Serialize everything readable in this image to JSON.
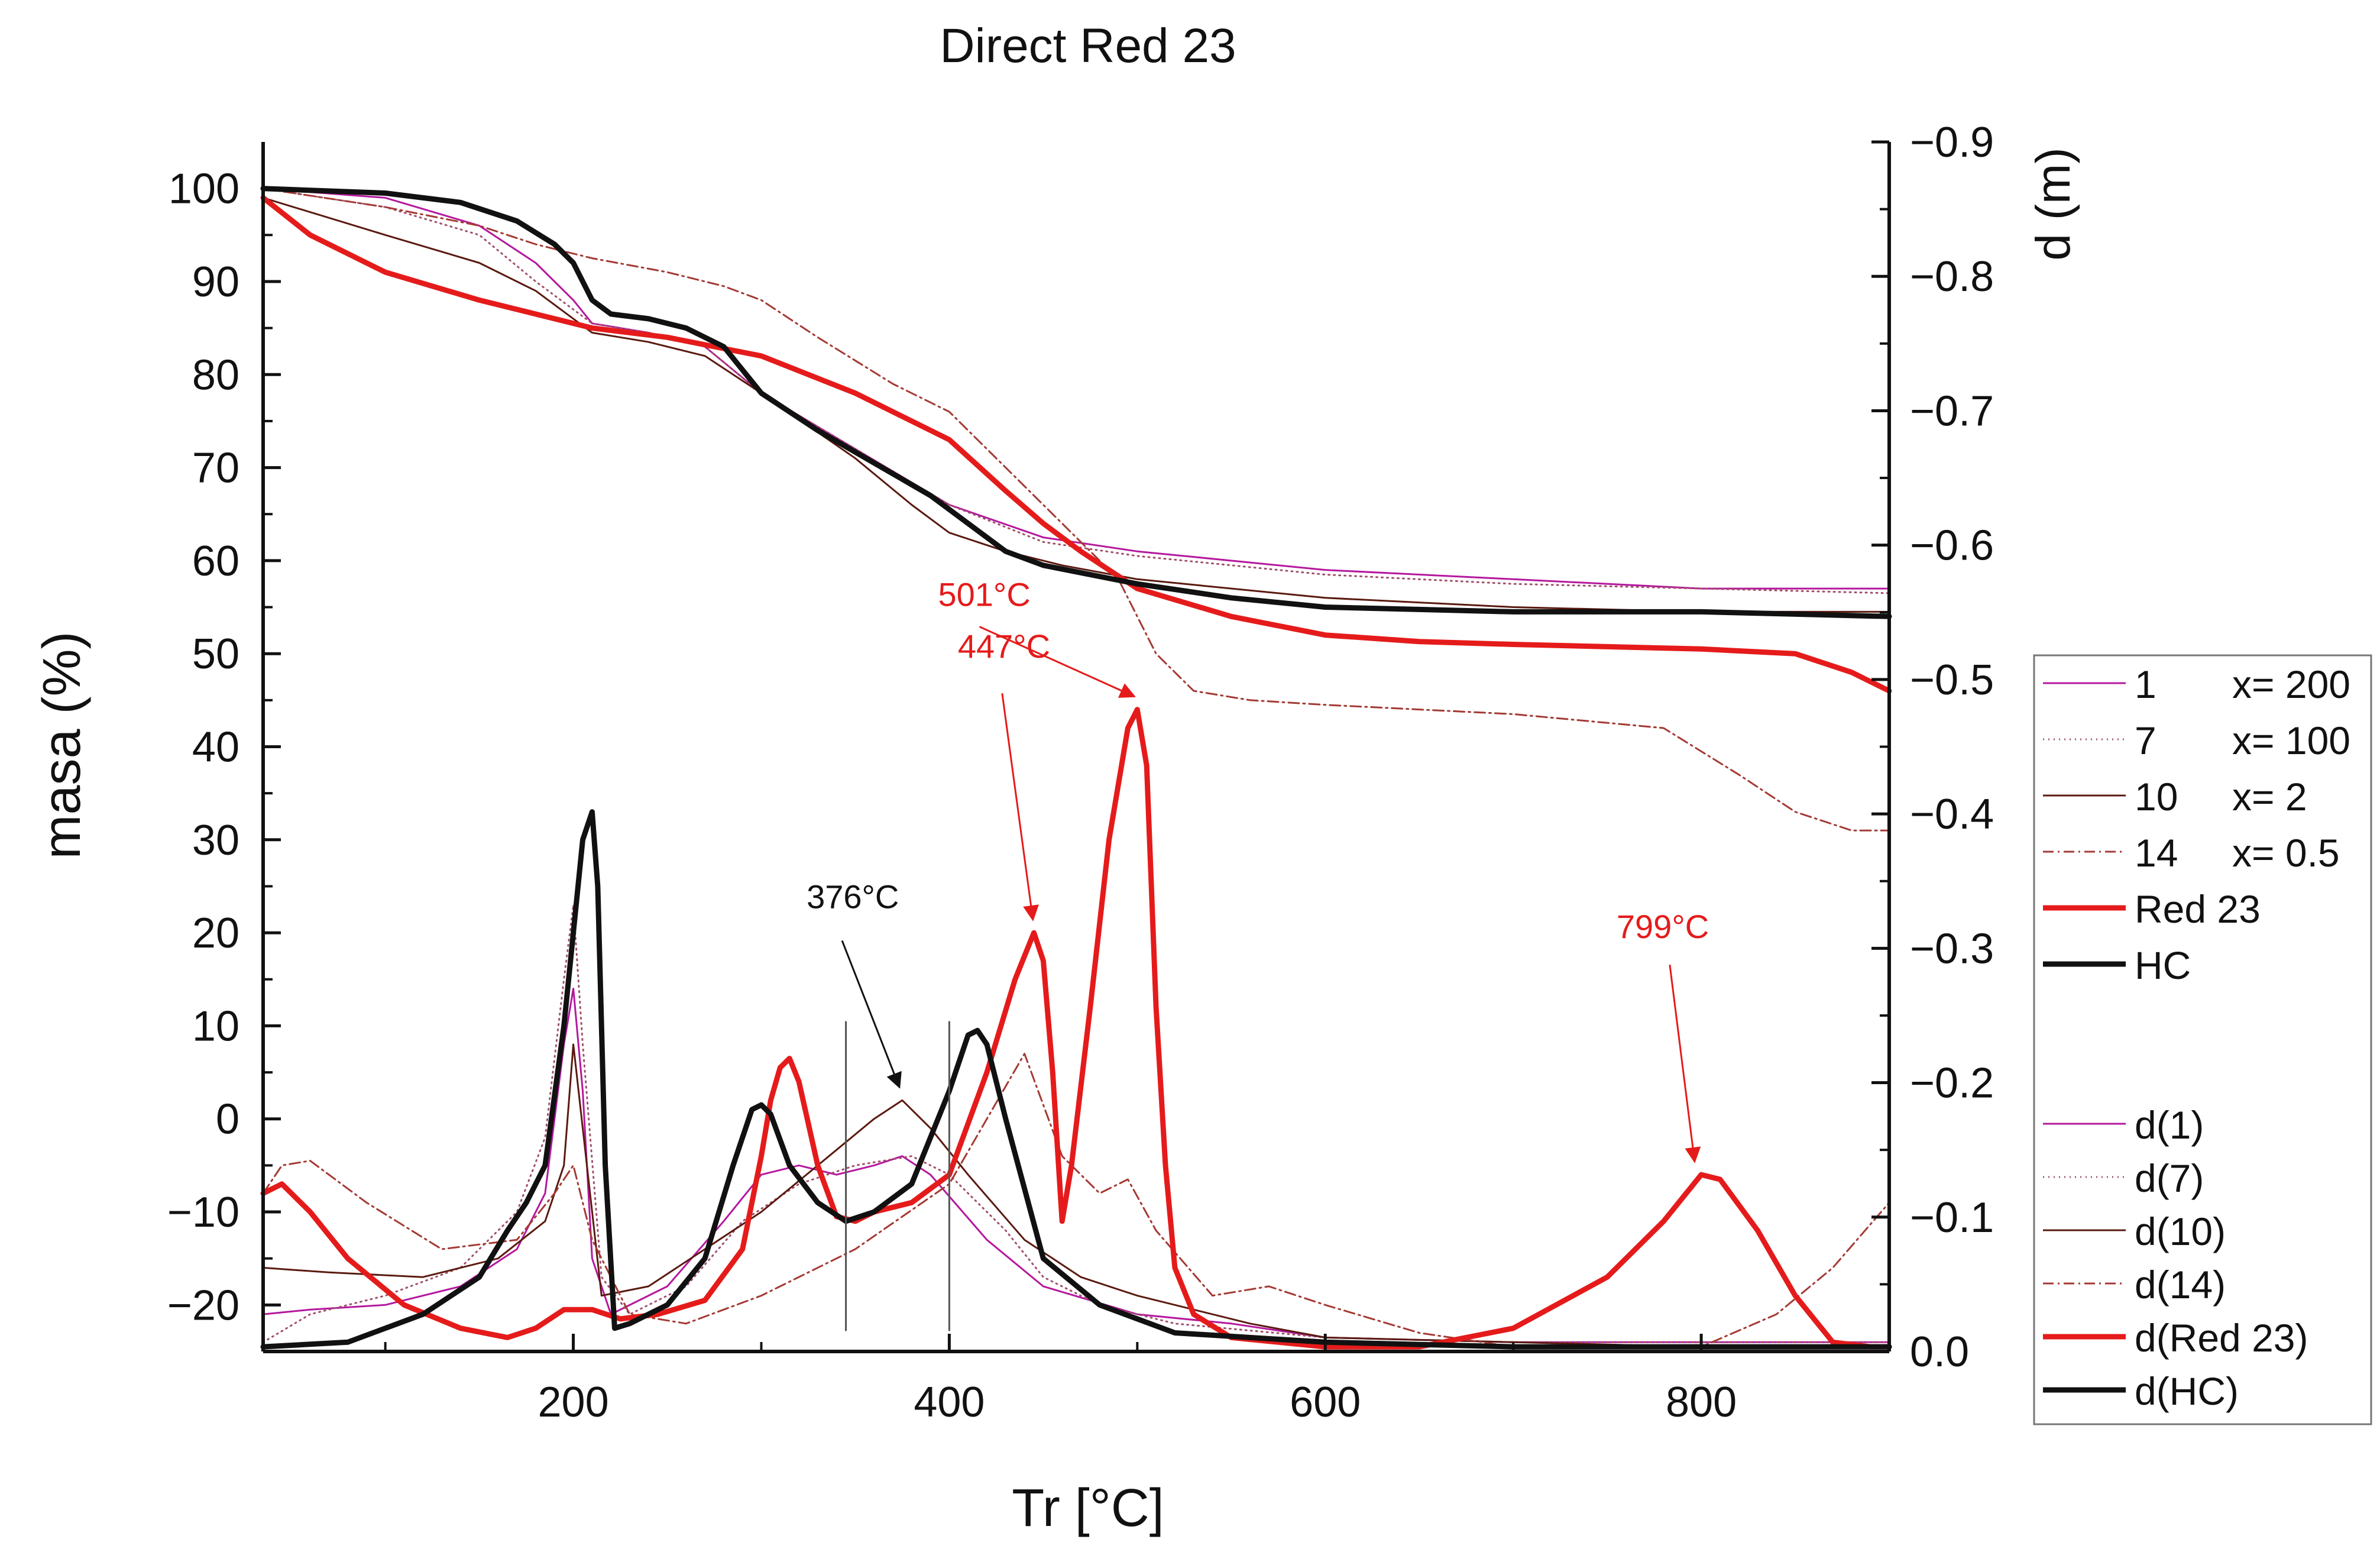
{
  "chart_data": {
    "type": "line",
    "title": "Direct Red 23",
    "xlabel": "Tr [°C]",
    "ylabel": "masa (%)",
    "y2label": "d (m)",
    "xlim": [
      35,
      900
    ],
    "ylim": [
      -25,
      105
    ],
    "y2lim": [
      0.0,
      -0.9
    ],
    "x_ticks": [
      200,
      400,
      600,
      800
    ],
    "y_ticks": [
      -20,
      -10,
      0,
      10,
      20,
      30,
      40,
      50,
      60,
      70,
      80,
      90,
      100
    ],
    "y2_ticks": [
      0.0,
      -0.1,
      -0.2,
      -0.3,
      -0.4,
      -0.5,
      -0.6,
      -0.7,
      -0.8,
      -0.9
    ],
    "x_tick_labels": [
      "200",
      "400",
      "600",
      "800"
    ],
    "y_tick_labels": [
      "−20",
      "−10",
      "0",
      "10",
      "20",
      "30",
      "40",
      "50",
      "60",
      "70",
      "80",
      "90",
      "100"
    ],
    "y2_tick_labels": [
      "0.0",
      "−0.1",
      "−0.2",
      "−0.3",
      "−0.4",
      "−0.5",
      "−0.6",
      "−0.7",
      "−0.8",
      "−0.9"
    ],
    "grid": false,
    "legend_position": "right",
    "legend": [
      {
        "label": "1",
        "param": "x= 200",
        "color": "#b5179e",
        "style": "solid",
        "width": 3
      },
      {
        "label": "7",
        "param": "x= 100",
        "color": "#a0506a",
        "style": "dotted",
        "width": 3
      },
      {
        "label": "10",
        "param": "x= 2",
        "color": "#5a1a10",
        "style": "solid",
        "width": 3
      },
      {
        "label": "14",
        "param": "x= 0.5",
        "color": "#a43a34",
        "style": "dashdot",
        "width": 3
      },
      {
        "label": "Red 23",
        "param": "",
        "color": "#e51b1b",
        "style": "solid",
        "width": 9
      },
      {
        "label": "HC",
        "param": "",
        "color": "#111111",
        "style": "solid",
        "width": 9
      },
      {
        "label": "d(1)",
        "param": "",
        "color": "#b5179e",
        "style": "solid",
        "width": 3
      },
      {
        "label": "d(7)",
        "param": "",
        "color": "#a0506a",
        "style": "dotted",
        "width": 3
      },
      {
        "label": "d(10)",
        "param": "",
        "color": "#5a1a10",
        "style": "solid",
        "width": 3
      },
      {
        "label": "d(14)",
        "param": "",
        "color": "#a43a34",
        "style": "dashdot",
        "width": 3
      },
      {
        "label": "d(Red 23)",
        "param": "",
        "color": "#e51b1b",
        "style": "solid",
        "width": 9
      },
      {
        "label": "d(HC)",
        "param": "",
        "color": "#111111",
        "style": "solid",
        "width": 9
      }
    ],
    "series": [
      {
        "name": "1",
        "axis": "y",
        "color": "#b5179e",
        "style": "solid",
        "width": 3,
        "x": [
          35,
          100,
          150,
          180,
          200,
          210,
          240,
          270,
          300,
          350,
          400,
          450,
          500,
          600,
          700,
          800,
          900
        ],
        "y": [
          100,
          99,
          96,
          92,
          88,
          85.5,
          84.5,
          83,
          78,
          72,
          66,
          62.5,
          61,
          59,
          58,
          57,
          57
        ]
      },
      {
        "name": "7",
        "axis": "y",
        "color": "#a0506a",
        "style": "dotted",
        "width": 3,
        "x": [
          35,
          100,
          150,
          180,
          200,
          210,
          240,
          270,
          300,
          350,
          400,
          450,
          500,
          600,
          700,
          800,
          900
        ],
        "y": [
          100,
          98,
          95,
          90,
          87,
          85.5,
          84.5,
          83,
          78,
          72,
          66,
          62,
          60.5,
          58.5,
          57.5,
          57,
          56.5
        ]
      },
      {
        "name": "10",
        "axis": "y",
        "color": "#5a1a10",
        "style": "solid",
        "width": 3,
        "x": [
          35,
          100,
          150,
          180,
          200,
          210,
          240,
          270,
          300,
          350,
          380,
          400,
          430,
          460,
          500,
          600,
          700,
          800,
          900
        ],
        "y": [
          99,
          95,
          92,
          89,
          86,
          84.5,
          83.5,
          82,
          78,
          71,
          66,
          63,
          61,
          59.5,
          58,
          56,
          55,
          54.5,
          54.5
        ]
      },
      {
        "name": "14",
        "axis": "y",
        "color": "#a43a34",
        "style": "dashdot",
        "width": 3,
        "x": [
          35,
          100,
          150,
          180,
          200,
          210,
          250,
          280,
          300,
          330,
          370,
          400,
          430,
          460,
          490,
          510,
          530,
          560,
          600,
          700,
          780,
          820,
          850,
          880,
          900
        ],
        "y": [
          100,
          98,
          96,
          94,
          93,
          92.5,
          91,
          89.5,
          88,
          84,
          79,
          76,
          70,
          64,
          58,
          50,
          46,
          45,
          44.5,
          43.5,
          42,
          37,
          33,
          31,
          31
        ]
      },
      {
        "name": "Red 23",
        "axis": "y",
        "color": "#e51b1b",
        "style": "solid",
        "width": 9,
        "x": [
          35,
          60,
          100,
          150,
          180,
          200,
          210,
          250,
          300,
          350,
          400,
          430,
          450,
          470,
          500,
          550,
          600,
          650,
          700,
          800,
          850,
          880,
          900
        ],
        "y": [
          99,
          95,
          91,
          88,
          86.5,
          85.5,
          85,
          84,
          82,
          78,
          73,
          67.5,
          64,
          61,
          57,
          54,
          52,
          51.3,
          51,
          50.5,
          50,
          48,
          46
        ]
      },
      {
        "name": "HC",
        "axis": "y",
        "color": "#111111",
        "style": "solid",
        "width": 9,
        "x": [
          35,
          100,
          140,
          170,
          190,
          200,
          210,
          220,
          240,
          260,
          280,
          300,
          330,
          360,
          390,
          410,
          430,
          450,
          500,
          550,
          600,
          700,
          800,
          900
        ],
        "y": [
          100,
          99.5,
          98.5,
          96.5,
          94,
          92,
          88,
          86.5,
          86,
          85,
          83,
          78,
          74,
          70.5,
          67,
          64,
          61,
          59.5,
          57.5,
          56,
          55,
          54.5,
          54.5,
          54
        ]
      },
      {
        "name": "d(1)",
        "axis": "y",
        "color": "#b5179e",
        "style": "solid",
        "width": 3,
        "x": [
          35,
          60,
          100,
          140,
          170,
          185,
          195,
          200,
          205,
          210,
          220,
          250,
          280,
          300,
          320,
          340,
          360,
          375,
          390,
          420,
          450,
          500,
          550,
          600,
          700,
          800,
          900
        ],
        "y": [
          -21,
          -20.5,
          -20,
          -18,
          -14,
          -8,
          8,
          14,
          3,
          -15,
          -21,
          -18,
          -11,
          -6,
          -5,
          -6,
          -5,
          -4,
          -6,
          -13,
          -18,
          -21,
          -22,
          -23.5,
          -24,
          -24,
          -24
        ]
      },
      {
        "name": "d(7)",
        "axis": "y",
        "color": "#a0506a",
        "style": "dotted",
        "width": 3,
        "x": [
          35,
          60,
          100,
          140,
          170,
          185,
          195,
          200,
          205,
          215,
          230,
          260,
          290,
          320,
          350,
          380,
          400,
          430,
          450,
          480,
          520,
          600,
          700,
          800,
          900
        ],
        "y": [
          -24,
          -21,
          -19,
          -16,
          -10,
          -2,
          15,
          23,
          8,
          -17,
          -21,
          -18,
          -11,
          -7,
          -5,
          -4,
          -6,
          -12,
          -17,
          -20,
          -22,
          -23.5,
          -24,
          -24,
          -24
        ]
      },
      {
        "name": "d(10)",
        "axis": "y",
        "color": "#5a1a10",
        "style": "solid",
        "width": 3,
        "x": [
          35,
          70,
          120,
          160,
          185,
          195,
          200,
          205,
          215,
          240,
          270,
          300,
          330,
          360,
          375,
          390,
          410,
          440,
          470,
          500,
          560,
          600,
          700,
          800,
          900
        ],
        "y": [
          -16,
          -16.5,
          -17,
          -15,
          -11,
          -5,
          8,
          -1,
          -19,
          -18,
          -14,
          -10,
          -5,
          0,
          2,
          -1,
          -6,
          -13,
          -17,
          -19,
          -22,
          -23.5,
          -24,
          -24.5,
          -24.5
        ]
      },
      {
        "name": "d(14)",
        "axis": "y",
        "color": "#a43a34",
        "style": "dashdot",
        "width": 3,
        "x": [
          35,
          45,
          60,
          90,
          130,
          170,
          190,
          200,
          210,
          230,
          260,
          300,
          350,
          400,
          420,
          440,
          460,
          480,
          495,
          510,
          540,
          570,
          600,
          650,
          700,
          750,
          800,
          840,
          870,
          900
        ],
        "y": [
          -8,
          -5,
          -4.5,
          -9,
          -14,
          -13,
          -8,
          -5,
          -13,
          -21,
          -22,
          -19,
          -14,
          -7,
          0,
          7,
          -4,
          -8,
          -6.5,
          -12,
          -19,
          -18,
          -20,
          -23,
          -24.5,
          -24.5,
          -24.5,
          -21,
          -16,
          -9
        ]
      },
      {
        "name": "d(Red 23)",
        "axis": "y",
        "color": "#e51b1b",
        "style": "solid",
        "width": 9,
        "x": [
          35,
          45,
          60,
          80,
          110,
          140,
          165,
          180,
          195,
          200,
          210,
          225,
          245,
          270,
          290,
          300,
          305,
          310,
          315,
          320,
          330,
          340,
          350,
          360,
          380,
          400,
          420,
          435,
          445,
          450,
          455,
          460,
          465,
          475,
          485,
          495,
          500,
          505,
          510,
          515,
          520,
          530,
          550,
          600,
          650,
          700,
          750,
          780,
          800,
          810,
          830,
          850,
          870,
          890,
          900
        ],
        "y": [
          -8,
          -7,
          -10,
          -15,
          -20,
          -22.5,
          -23.5,
          -22.5,
          -20.5,
          -20.5,
          -20.5,
          -21.5,
          -21,
          -19.5,
          -14,
          -4,
          2,
          5.5,
          6.5,
          4,
          -5,
          -10.5,
          -11,
          -10,
          -9,
          -6,
          5,
          15,
          20,
          17,
          5,
          -11,
          -5,
          12,
          30,
          42,
          44,
          38,
          12,
          -5,
          -16,
          -21,
          -23.5,
          -24.5,
          -24.5,
          -22.5,
          -17,
          -11,
          -6,
          -6.5,
          -12,
          -19,
          -24,
          -24.5,
          -24.5
        ]
      },
      {
        "name": "d(HC)",
        "axis": "y",
        "color": "#111111",
        "style": "solid",
        "width": 9,
        "x": [
          35,
          80,
          120,
          150,
          165,
          175,
          185,
          195,
          200,
          205,
          210,
          213,
          217,
          222,
          230,
          250,
          270,
          285,
          295,
          300,
          305,
          315,
          330,
          345,
          360,
          380,
          400,
          410,
          415,
          420,
          430,
          450,
          480,
          520,
          600,
          700,
          800,
          900
        ],
        "y": [
          -24.5,
          -24,
          -21,
          -17,
          -12,
          -9,
          -5,
          10,
          20,
          30,
          33,
          25,
          -5,
          -22.5,
          -22,
          -20,
          -15,
          -5,
          1,
          1.5,
          0.5,
          -5,
          -9,
          -11,
          -10,
          -7,
          3,
          9,
          9.5,
          8,
          0,
          -15,
          -20,
          -23,
          -24,
          -24.5,
          -24.5,
          -24.5
        ]
      }
    ],
    "vertical_markers": [
      345,
      400
    ],
    "annotations": [
      {
        "text": "376°C",
        "color": "#111111",
        "x": 376,
        "y": 2
      },
      {
        "text": "447°C",
        "color": "#e51b1b",
        "x": 447,
        "y": 20
      },
      {
        "text": "501°C",
        "color": "#e51b1b",
        "x": 501,
        "y": 44
      },
      {
        "text": "799°C",
        "color": "#e51b1b",
        "x": 799,
        "y": -6
      }
    ]
  }
}
